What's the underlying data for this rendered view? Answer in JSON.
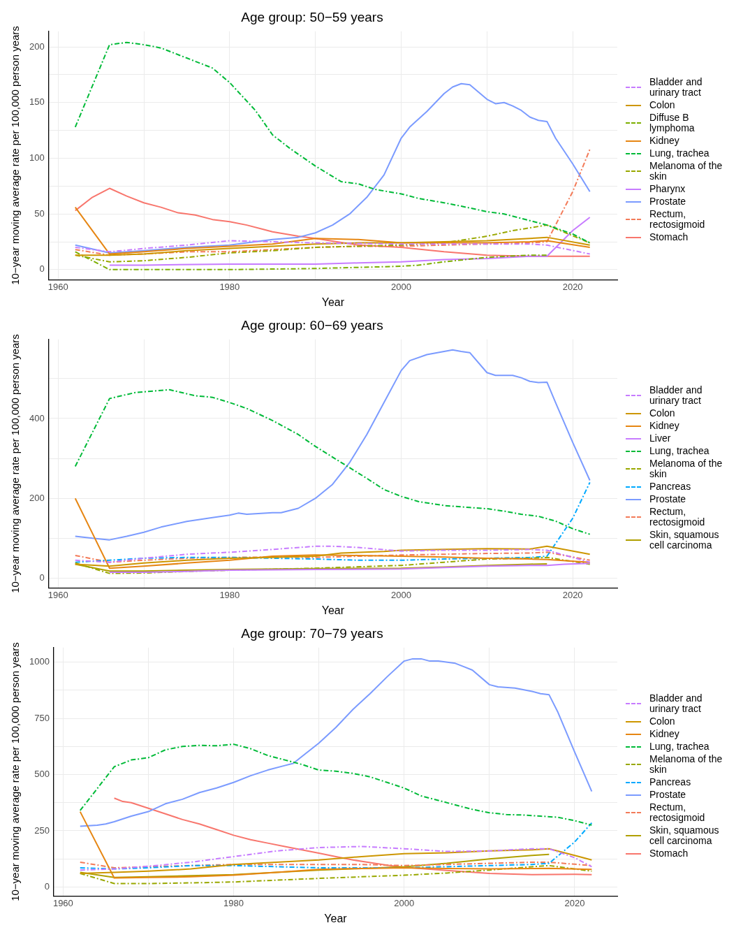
{
  "chart_data": [
    {
      "type": "line",
      "title": "Age group: 50−59 years",
      "xlabel": "Year",
      "ylabel": "10−year moving average rate per 100,000 person years",
      "xlim": [
        1958.9,
        2025.2
      ],
      "ylim": [
        -9,
        214
      ],
      "xticks": [
        1960,
        {
          "value": 1970,
          "label": null
        },
        1980,
        {
          "value": 1990,
          "label": null
        },
        2000,
        {
          "value": 2010,
          "label": null
        },
        2020
      ],
      "yticks": [
        0,
        {
          "value": 25,
          "label": null
        },
        50,
        {
          "value": 75,
          "label": null
        },
        100,
        {
          "value": 125,
          "label": null
        },
        150,
        {
          "value": 175,
          "label": null
        },
        200
      ],
      "grid": true,
      "legend": "right",
      "series": [
        {
          "name": "Bladder and urinary tract",
          "color": "#c77cff",
          "line_style": "dashed",
          "x": [
            1962,
            1966,
            1970,
            1975,
            1980,
            1985,
            1990,
            2000,
            2005,
            2010,
            2015,
            2017,
            2022
          ],
          "values": [
            20,
            16,
            19,
            22,
            26,
            25,
            24,
            23,
            23,
            23,
            23,
            22,
            14
          ]
        },
        {
          "name": "Colon",
          "color": "#cd9600",
          "line_style": "solid",
          "x": [
            1962,
            1966,
            1970,
            1975,
            1980,
            1985,
            1990,
            1995,
            2000,
            2005,
            2010,
            2015,
            2017,
            2022
          ],
          "values": [
            13,
            13,
            14,
            17,
            19,
            21,
            23,
            24,
            24,
            25,
            26,
            28,
            29,
            22
          ]
        },
        {
          "name": "Diffuse B lymphoma",
          "color": "#7cae00",
          "line_style": "dashed",
          "x": [
            1962,
            1966,
            1970,
            1980,
            1990,
            2000,
            2002,
            2005,
            2010,
            2015,
            2017
          ],
          "values": [
            16,
            0,
            0,
            0,
            1,
            3,
            4,
            7,
            11,
            13,
            13
          ]
        },
        {
          "name": "Kidney",
          "color": "#e68613",
          "line_style": "solid",
          "x": [
            1962,
            1966,
            1970,
            1975,
            1980,
            1985,
            1990,
            1995,
            2000,
            2005,
            2010,
            2015,
            2017,
            2022
          ],
          "values": [
            56,
            14,
            16,
            19,
            21,
            23,
            28,
            27,
            24,
            24,
            24,
            25,
            26,
            20
          ]
        },
        {
          "name": "Lung, trachea",
          "color": "#00ba38",
          "line_style": "dashed",
          "x": [
            1962,
            1966,
            1968,
            1970,
            1972,
            1975,
            1978,
            1980,
            1983,
            1985,
            1987,
            1990,
            1993,
            1995,
            1997,
            2000,
            2002,
            2005,
            2007,
            2010,
            2012,
            2015,
            2017,
            2020,
            2022
          ],
          "values": [
            128,
            202,
            204,
            202,
            199,
            190,
            181,
            168,
            143,
            121,
            109,
            93,
            79,
            77,
            72,
            68,
            64,
            60,
            57,
            52,
            50,
            44,
            40,
            32,
            24
          ]
        },
        {
          "name": "Melanoma of the skin",
          "color": "#99a800",
          "line_style": "dashed",
          "x": [
            1962,
            1966,
            1970,
            1975,
            1980,
            1985,
            1990,
            1995,
            2000,
            2005,
            2010,
            2013,
            2017,
            2022
          ],
          "values": [
            13,
            7,
            8,
            11,
            15,
            17,
            20,
            21,
            22,
            24,
            30,
            35,
            40,
            24
          ]
        },
        {
          "name": "Pharynx",
          "color": "#c77cff",
          "line_style": "solid",
          "x": [
            1966,
            1970,
            1980,
            1990,
            1995,
            2000,
            2005,
            2010,
            2015,
            2017,
            2020,
            2022
          ],
          "values": [
            4,
            4,
            5,
            5,
            6,
            7,
            9,
            10,
            12,
            12,
            35,
            47
          ]
        },
        {
          "name": "Prostate",
          "color": "#7b9bff",
          "line_style": "solid",
          "x": [
            1962,
            1966,
            1970,
            1975,
            1980,
            1985,
            1988,
            1990,
            1992,
            1994,
            1996,
            1998,
            2000,
            2001,
            2003,
            2005,
            2006,
            2007,
            2008,
            2010,
            2011,
            2012,
            2013,
            2014,
            2015,
            2016,
            2017,
            2018,
            2020,
            2022
          ],
          "values": [
            22,
            15,
            17,
            20,
            22,
            27,
            29,
            33,
            40,
            50,
            65,
            85,
            118,
            128,
            142,
            158,
            164,
            167,
            166,
            153,
            149,
            150,
            147,
            143,
            137,
            134,
            133,
            118,
            95,
            70
          ]
        },
        {
          "name": "Rectum, rectosigmoid",
          "color": "#f37b59",
          "line_style": "dashed",
          "x": [
            1962,
            1966,
            1970,
            1975,
            1980,
            1985,
            1990,
            1995,
            2000,
            2005,
            2010,
            2015,
            2017,
            2020,
            2022
          ],
          "values": [
            18,
            13,
            14,
            16,
            16,
            18,
            20,
            21,
            21,
            22,
            23,
            24,
            25,
            70,
            108
          ]
        },
        {
          "name": "Stomach",
          "color": "#f8766d",
          "line_style": "solid",
          "x": [
            1962,
            1964,
            1966,
            1968,
            1970,
            1972,
            1974,
            1976,
            1978,
            1980,
            1982,
            1984,
            1985,
            1988,
            1990,
            1995,
            2000,
            2005,
            2010,
            2015,
            2020,
            2022
          ],
          "values": [
            53,
            65,
            73,
            66,
            60,
            56,
            51,
            49,
            45,
            43,
            40,
            36,
            34,
            30,
            28,
            22,
            20,
            16,
            13,
            12,
            12,
            12
          ]
        }
      ]
    },
    {
      "type": "line",
      "title": "Age group: 60−69 years",
      "xlabel": "Year",
      "ylabel": "10−year moving average rate per 100,000 person years",
      "xlim": [
        1958.9,
        2025.2
      ],
      "ylim": [
        -24,
        598
      ],
      "xticks": [
        1960,
        {
          "value": 1970,
          "label": null
        },
        1980,
        {
          "value": 1990,
          "label": null
        },
        2000,
        {
          "value": 2010,
          "label": null
        },
        2020
      ],
      "yticks": [
        0,
        {
          "value": 100,
          "label": null
        },
        200,
        {
          "value": 300,
          "label": null
        },
        400,
        {
          "value": 500,
          "label": null
        }
      ],
      "grid": true,
      "legend": "right",
      "series": [
        {
          "name": "Bladder and urinary tract",
          "color": "#c77cff",
          "line_style": "dashed",
          "x": [
            1962,
            1966,
            1970,
            1975,
            1980,
            1985,
            1990,
            1992,
            1995,
            2000,
            2005,
            2010,
            2015,
            2017,
            2022
          ],
          "values": [
            45,
            40,
            50,
            60,
            65,
            72,
            80,
            80,
            77,
            68,
            70,
            70,
            72,
            70,
            40
          ]
        },
        {
          "name": "Colon",
          "color": "#cd9600",
          "line_style": "solid",
          "x": [
            1962,
            1966,
            1970,
            1975,
            1980,
            1985,
            1990,
            1993,
            1998,
            2000,
            2005,
            2010,
            2015,
            2017,
            2022
          ],
          "values": [
            35,
            30,
            38,
            45,
            50,
            52,
            55,
            63,
            67,
            70,
            72,
            74,
            73,
            80,
            60
          ]
        },
        {
          "name": "Kidney",
          "color": "#e68613",
          "line_style": "solid",
          "x": [
            1962,
            1966,
            1970,
            1975,
            1980,
            1985,
            1990,
            1995,
            2000,
            2005,
            2010,
            2015,
            2017,
            2022
          ],
          "values": [
            200,
            25,
            30,
            38,
            45,
            55,
            58,
            57,
            55,
            53,
            50,
            48,
            47,
            40
          ]
        },
        {
          "name": "Liver",
          "color": "#c77cff",
          "line_style": "solid",
          "x": [
            1966,
            1970,
            1975,
            1980,
            1990,
            2000,
            2010,
            2015,
            2017,
            2019,
            2022
          ],
          "values": [
            15,
            15,
            17,
            20,
            22,
            23,
            30,
            32,
            32,
            35,
            37
          ]
        },
        {
          "name": "Lung, trachea",
          "color": "#00ba38",
          "line_style": "dashed",
          "x": [
            1962,
            1966,
            1969,
            1973,
            1976,
            1978,
            1980,
            1982,
            1985,
            1988,
            1990,
            1993,
            1996,
            1998,
            2000,
            2002,
            2005,
            2008,
            2010,
            2012,
            2014,
            2016,
            2018,
            2020,
            2022
          ],
          "values": [
            280,
            450,
            465,
            472,
            457,
            453,
            440,
            425,
            395,
            360,
            330,
            290,
            250,
            222,
            205,
            192,
            182,
            177,
            174,
            168,
            160,
            155,
            143,
            124,
            110
          ]
        },
        {
          "name": "Melanoma of the skin",
          "color": "#99a800",
          "line_style": "dashed",
          "x": [
            1962,
            1966,
            1970,
            1975,
            1980,
            1990,
            2000,
            2005,
            2010,
            2015,
            2017,
            2022
          ],
          "values": [
            38,
            12,
            13,
            17,
            20,
            25,
            32,
            40,
            48,
            50,
            52,
            35
          ]
        },
        {
          "name": "Pancreas",
          "color": "#00a9ff",
          "line_style": "dashed",
          "x": [
            1962,
            1966,
            1970,
            1975,
            1980,
            1985,
            1990,
            1995,
            2000,
            2005,
            2010,
            2015,
            2017,
            2020,
            2022
          ],
          "values": [
            40,
            45,
            50,
            52,
            52,
            50,
            48,
            45,
            45,
            48,
            50,
            52,
            55,
            150,
            240
          ]
        },
        {
          "name": "Prostate",
          "color": "#7b9bff",
          "line_style": "solid",
          "x": [
            1962,
            1964,
            1966,
            1968,
            1970,
            1972,
            1975,
            1978,
            1980,
            1981,
            1982,
            1985,
            1986,
            1988,
            1990,
            1992,
            1994,
            1996,
            1998,
            2000,
            2001,
            2003,
            2005,
            2006,
            2007,
            2008,
            2010,
            2011,
            2013,
            2014,
            2015,
            2016,
            2017,
            2018,
            2020,
            2022
          ],
          "values": [
            105,
            100,
            96,
            105,
            115,
            128,
            142,
            152,
            158,
            163,
            160,
            164,
            164,
            175,
            200,
            235,
            290,
            360,
            440,
            520,
            545,
            560,
            568,
            572,
            568,
            565,
            515,
            508,
            508,
            502,
            493,
            490,
            491,
            440,
            340,
            245
          ]
        },
        {
          "name": "Rectum, rectosigmoid",
          "color": "#f37b59",
          "line_style": "dashed",
          "x": [
            1962,
            1966,
            1970,
            1975,
            1980,
            1985,
            1990,
            1995,
            2000,
            2005,
            2010,
            2015,
            2017,
            2022
          ],
          "values": [
            57,
            40,
            45,
            50,
            52,
            53,
            52,
            55,
            58,
            60,
            62,
            63,
            65,
            45
          ]
        },
        {
          "name": "Skin, squamous cell carcinoma",
          "color": "#b0a000",
          "line_style": "solid",
          "x": [
            1962,
            1966,
            1970,
            1975,
            1980,
            1990,
            2000,
            2005,
            2010,
            2015,
            2017
          ],
          "values": [
            35,
            18,
            18,
            20,
            22,
            24,
            25,
            28,
            32,
            35,
            36
          ]
        }
      ]
    },
    {
      "type": "line",
      "title": "Age group: 70−79 years",
      "xlabel": "Year",
      "ylabel": "10−year moving average rate per 100,000 person years",
      "xlim": [
        1958.9,
        2025
      ],
      "ylim": [
        -40,
        1065
      ],
      "xticks": [
        1960,
        {
          "value": 1970,
          "label": null
        },
        1980,
        {
          "value": 1990,
          "label": null
        },
        2000,
        {
          "value": 2010,
          "label": null
        },
        2020
      ],
      "yticks": [
        0,
        {
          "value": 125,
          "label": null
        },
        250,
        {
          "value": 375,
          "label": null
        },
        500,
        {
          "value": 625,
          "label": null
        },
        750,
        {
          "value": 875,
          "label": null
        },
        1000
      ],
      "grid": true,
      "legend": "right",
      "series": [
        {
          "name": "Bladder and urinary tract",
          "color": "#c77cff",
          "line_style": "dashed",
          "x": [
            1962,
            1966,
            1970,
            1975,
            1980,
            1985,
            1990,
            1995,
            2000,
            2005,
            2010,
            2015,
            2017,
            2020,
            2022
          ],
          "values": [
            75,
            80,
            92,
            110,
            135,
            160,
            175,
            180,
            170,
            158,
            160,
            170,
            170,
            130,
            90
          ]
        },
        {
          "name": "Colon",
          "color": "#cd9600",
          "line_style": "solid",
          "x": [
            1962,
            1966,
            1970,
            1975,
            1980,
            1985,
            1990,
            1995,
            2000,
            2005,
            2010,
            2015,
            2017,
            2020,
            2022
          ],
          "values": [
            60,
            65,
            70,
            80,
            100,
            110,
            120,
            135,
            148,
            152,
            160,
            165,
            170,
            140,
            120
          ]
        },
        {
          "name": "Kidney",
          "color": "#e68613",
          "line_style": "solid",
          "x": [
            1962,
            1966,
            1970,
            1975,
            1980,
            1985,
            1990,
            1995,
            2000,
            2005,
            2010,
            2015,
            2017,
            2022
          ],
          "values": [
            335,
            40,
            42,
            45,
            52,
            65,
            78,
            82,
            85,
            82,
            80,
            82,
            83,
            78
          ]
        },
        {
          "name": "Lung, trachea",
          "color": "#00ba38",
          "line_style": "dashed",
          "x": [
            1962,
            1966,
            1968,
            1970,
            1972,
            1974,
            1976,
            1978,
            1980,
            1982,
            1984,
            1986,
            1988,
            1990,
            1992,
            1994,
            1996,
            1998,
            2000,
            2002,
            2004,
            2006,
            2008,
            2010,
            2012,
            2014,
            2016,
            2018,
            2020,
            2022
          ],
          "values": [
            340,
            535,
            565,
            575,
            610,
            625,
            630,
            628,
            635,
            615,
            585,
            565,
            545,
            520,
            515,
            505,
            490,
            465,
            440,
            405,
            385,
            365,
            345,
            330,
            322,
            320,
            315,
            310,
            295,
            275
          ]
        },
        {
          "name": "Melanoma of the skin",
          "color": "#99a800",
          "line_style": "dashed",
          "x": [
            1962,
            1966,
            1970,
            1975,
            1980,
            1985,
            1990,
            1995,
            2000,
            2005,
            2010,
            2015,
            2017,
            2022
          ],
          "values": [
            60,
            15,
            15,
            18,
            22,
            30,
            38,
            45,
            52,
            62,
            75,
            90,
            95,
            70
          ]
        },
        {
          "name": "Pancreas",
          "color": "#00a9ff",
          "line_style": "dashed",
          "x": [
            1962,
            1966,
            1970,
            1975,
            1980,
            1985,
            1990,
            1995,
            2000,
            2005,
            2010,
            2015,
            2017,
            2020,
            2022
          ],
          "values": [
            85,
            80,
            85,
            95,
            95,
            90,
            85,
            85,
            85,
            90,
            95,
            100,
            105,
            200,
            285
          ]
        },
        {
          "name": "Prostate",
          "color": "#7b9bff",
          "line_style": "solid",
          "x": [
            1962,
            1964,
            1965,
            1966,
            1968,
            1970,
            1972,
            1974,
            1976,
            1978,
            1980,
            1982,
            1984,
            1986,
            1987,
            1988,
            1990,
            1992,
            1994,
            1996,
            1998,
            2000,
            2001,
            2002,
            2003,
            2004,
            2006,
            2007,
            2008,
            2010,
            2011,
            2013,
            2015,
            2016,
            2017,
            2018,
            2020,
            2022
          ],
          "values": [
            270,
            275,
            280,
            290,
            315,
            335,
            370,
            390,
            420,
            440,
            465,
            495,
            520,
            540,
            550,
            580,
            640,
            710,
            790,
            860,
            935,
            1005,
            1015,
            1015,
            1005,
            1005,
            995,
            980,
            965,
            900,
            890,
            885,
            870,
            860,
            855,
            780,
            600,
            425
          ]
        },
        {
          "name": "Rectum, rectosigmoid",
          "color": "#f37b59",
          "line_style": "dashed",
          "x": [
            1962,
            1966,
            1970,
            1975,
            1980,
            1985,
            1990,
            1995,
            2000,
            2005,
            2010,
            2015,
            2017,
            2022
          ],
          "values": [
            110,
            85,
            90,
            95,
            100,
            100,
            100,
            100,
            95,
            100,
            105,
            110,
            110,
            95
          ]
        },
        {
          "name": "Skin, squamous cell carcinoma",
          "color": "#b0a000",
          "line_style": "solid",
          "x": [
            1962,
            1966,
            1970,
            1975,
            1980,
            1985,
            1990,
            1995,
            2000,
            2005,
            2010,
            2015,
            2017
          ],
          "values": [
            65,
            42,
            45,
            50,
            55,
            65,
            75,
            82,
            90,
            105,
            125,
            140,
            145
          ]
        },
        {
          "name": "Stomach",
          "color": "#f8766d",
          "line_style": "solid",
          "x": [
            1966,
            1967,
            1968,
            1970,
            1972,
            1974,
            1976,
            1978,
            1980,
            1982,
            1984,
            1986,
            1988,
            1990,
            1992,
            1994,
            1996,
            1998,
            2000,
            2005,
            2010,
            2015,
            2020,
            2022
          ],
          "values": [
            395,
            380,
            375,
            350,
            325,
            300,
            280,
            255,
            230,
            210,
            195,
            180,
            165,
            150,
            135,
            120,
            108,
            97,
            87,
            73,
            60,
            55,
            56,
            55
          ]
        }
      ]
    }
  ]
}
